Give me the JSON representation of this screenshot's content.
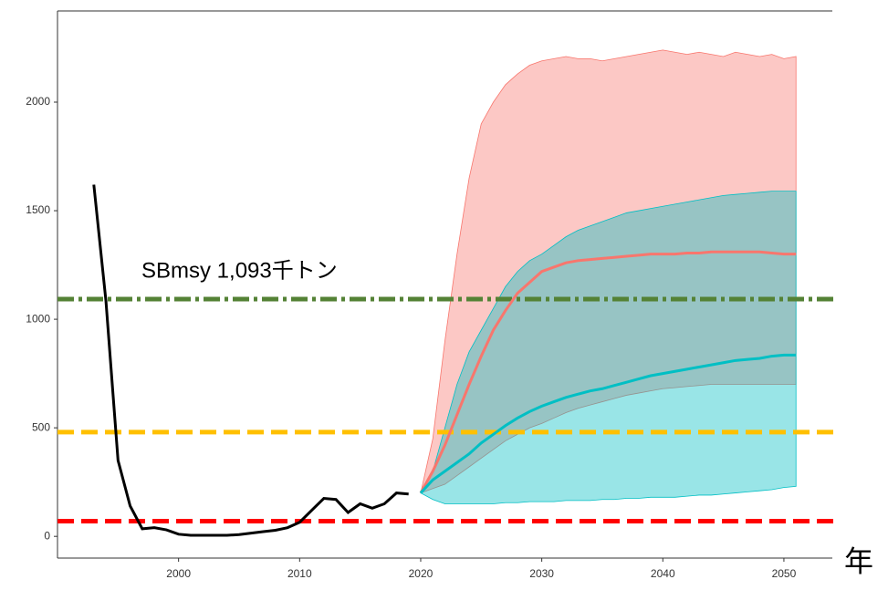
{
  "chart_data": {
    "type": "line",
    "annotation": "SBmsy 1,093千トン",
    "xlabel": "年",
    "xlim": [
      1990,
      2054
    ],
    "xticks": [
      2000,
      2010,
      2020,
      2030,
      2040,
      2050
    ],
    "ylim": [
      -100,
      2420
    ],
    "yticks": [
      0,
      500,
      1000,
      1500,
      2000
    ],
    "hlines": [
      {
        "value": 1093,
        "color": "#548235",
        "style": "dashdot"
      },
      {
        "value": 480,
        "color": "#ffc000",
        "style": "dash"
      },
      {
        "value": 70,
        "color": "#ff0000",
        "style": "dash"
      }
    ],
    "bands": [
      {
        "color": "#f8766d",
        "x": [
          2020,
          2021,
          2022,
          2023,
          2024,
          2025,
          2026,
          2027,
          2028,
          2029,
          2030,
          2031,
          2032,
          2033,
          2034,
          2035,
          2036,
          2037,
          2038,
          2039,
          2040,
          2041,
          2042,
          2043,
          2044,
          2045,
          2046,
          2047,
          2048,
          2049,
          2050,
          2051
        ],
        "upper": [
          200,
          450,
          900,
          1300,
          1650,
          1900,
          2000,
          2080,
          2130,
          2170,
          2190,
          2200,
          2210,
          2200,
          2200,
          2190,
          2200,
          2210,
          2220,
          2230,
          2240,
          2230,
          2220,
          2230,
          2220,
          2210,
          2230,
          2220,
          2210,
          2220,
          2200,
          2210
        ],
        "lower": [
          200,
          220,
          240,
          280,
          320,
          360,
          400,
          440,
          470,
          500,
          520,
          545,
          570,
          590,
          605,
          620,
          635,
          650,
          660,
          670,
          680,
          685,
          690,
          695,
          700,
          700,
          700,
          700,
          700,
          700,
          700,
          700
        ]
      },
      {
        "color": "#00bfc4",
        "x": [
          2020,
          2021,
          2022,
          2023,
          2024,
          2025,
          2026,
          2027,
          2028,
          2029,
          2030,
          2031,
          2032,
          2033,
          2034,
          2035,
          2036,
          2037,
          2038,
          2039,
          2040,
          2041,
          2042,
          2043,
          2044,
          2045,
          2046,
          2047,
          2048,
          2049,
          2050,
          2051
        ],
        "upper": [
          200,
          300,
          500,
          700,
          850,
          950,
          1050,
          1150,
          1220,
          1270,
          1300,
          1340,
          1380,
          1410,
          1430,
          1450,
          1470,
          1490,
          1500,
          1510,
          1520,
          1530,
          1540,
          1550,
          1560,
          1570,
          1575,
          1580,
          1585,
          1590,
          1590,
          1590
        ],
        "lower": [
          200,
          170,
          150,
          150,
          150,
          150,
          150,
          155,
          155,
          160,
          160,
          160,
          165,
          165,
          165,
          170,
          170,
          175,
          175,
          180,
          180,
          180,
          185,
          190,
          190,
          195,
          200,
          205,
          210,
          215,
          225,
          230
        ]
      }
    ],
    "series": [
      {
        "color": "#000000",
        "x": [
          1993,
          1994,
          1995,
          1996,
          1997,
          1998,
          1999,
          2000,
          2001,
          2002,
          2003,
          2004,
          2005,
          2006,
          2007,
          2008,
          2009,
          2010,
          2011,
          2012,
          2013,
          2014,
          2015,
          2016,
          2017,
          2018,
          2019
        ],
        "values": [
          1620,
          1085,
          350,
          140,
          35,
          40,
          30,
          10,
          5,
          5,
          5,
          5,
          8,
          15,
          22,
          28,
          40,
          65,
          120,
          175,
          170,
          110,
          150,
          130,
          150,
          200,
          195
        ]
      },
      {
        "color": "#f8766d",
        "x": [
          2020,
          2021,
          2022,
          2023,
          2024,
          2025,
          2026,
          2027,
          2028,
          2029,
          2030,
          2031,
          2032,
          2033,
          2034,
          2035,
          2036,
          2037,
          2038,
          2039,
          2040,
          2041,
          2042,
          2043,
          2044,
          2045,
          2046,
          2047,
          2048,
          2049,
          2050,
          2051
        ],
        "values": [
          200,
          300,
          420,
          560,
          700,
          830,
          950,
          1040,
          1120,
          1170,
          1220,
          1240,
          1260,
          1270,
          1275,
          1280,
          1285,
          1290,
          1295,
          1300,
          1300,
          1300,
          1305,
          1305,
          1310,
          1310,
          1310,
          1310,
          1310,
          1305,
          1300,
          1300
        ]
      },
      {
        "color": "#00bfc4",
        "x": [
          2020,
          2021,
          2022,
          2023,
          2024,
          2025,
          2026,
          2027,
          2028,
          2029,
          2030,
          2031,
          2032,
          2033,
          2034,
          2035,
          2036,
          2037,
          2038,
          2039,
          2040,
          2041,
          2042,
          2043,
          2044,
          2045,
          2046,
          2047,
          2048,
          2049,
          2050,
          2051
        ],
        "values": [
          200,
          260,
          300,
          340,
          380,
          430,
          470,
          510,
          545,
          575,
          600,
          620,
          640,
          655,
          670,
          680,
          695,
          710,
          725,
          740,
          750,
          760,
          770,
          780,
          790,
          800,
          810,
          815,
          820,
          830,
          835,
          835
        ]
      }
    ]
  }
}
